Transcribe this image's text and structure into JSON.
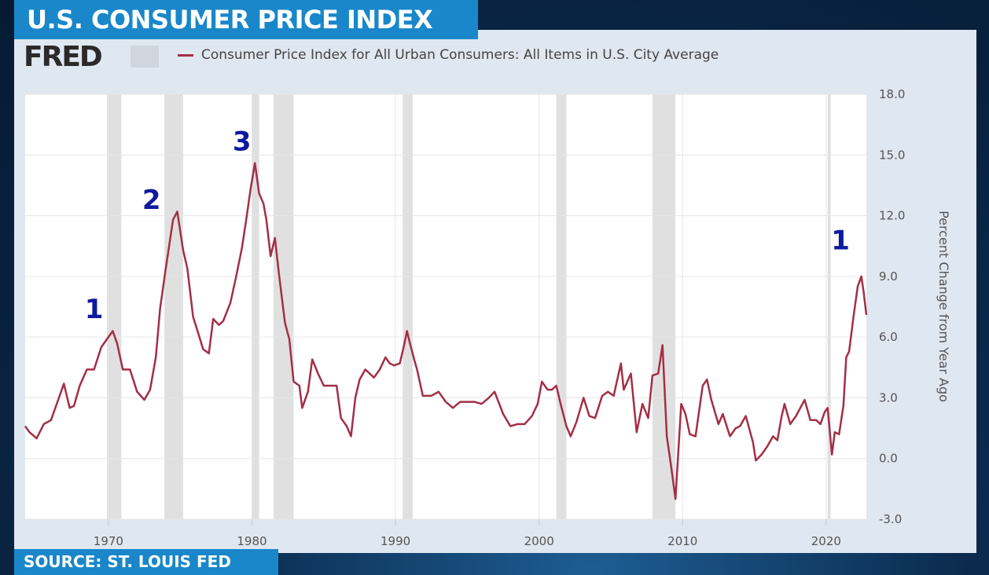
{
  "header": {
    "title": "U.S. CONSUMER PRICE INDEX",
    "source": "SOURCE: ST. LOUIS FED",
    "logo_text": "FRED"
  },
  "colors": {
    "line": "#a32f46",
    "recession": "#e0e0e0",
    "accent": "#1987c9",
    "annotation": "#0e1aa0"
  },
  "chart_data": {
    "type": "line",
    "title": "",
    "legend": "Consumer Price Index for All Urban Consumers: All Items in U.S. City Average",
    "legend_placement": "top-left",
    "xlabel": "",
    "ylabel": "Percent Change from Year Ago",
    "xlim": [
      1964.2,
      2022.8
    ],
    "ylim": [
      -3,
      18
    ],
    "yticks": [
      "18.0",
      "15.0",
      "12.0",
      "9.0",
      "6.0",
      "3.0",
      "0.0",
      "-3.0"
    ],
    "xticks": [
      "1970",
      "1980",
      "1990",
      "2000",
      "2010",
      "2020"
    ],
    "grid": true,
    "y_axis_side": "right",
    "recessions": [
      [
        1969.9,
        1970.9
      ],
      [
        1973.9,
        1975.2
      ],
      [
        1980.0,
        1980.5
      ],
      [
        1981.5,
        1982.9
      ],
      [
        1990.5,
        1991.2
      ],
      [
        2001.2,
        2001.9
      ],
      [
        2007.9,
        2009.5
      ],
      [
        2020.1,
        2020.3
      ]
    ],
    "series": [
      {
        "x": [
          1964.2,
          1964.5,
          1965.0,
          1965.5,
          1966.0,
          1966.5,
          1966.9,
          1967.3,
          1967.6,
          1968.0,
          1968.5,
          1969.0,
          1969.5,
          1970.0,
          1970.3,
          1970.6,
          1971.0,
          1971.5,
          1972.0,
          1972.5,
          1972.9,
          1973.3,
          1973.6,
          1974.0,
          1974.5,
          1974.8,
          1975.2,
          1975.5,
          1975.9,
          1976.3,
          1976.6,
          1977.0,
          1977.3,
          1977.7,
          1978.0,
          1978.5,
          1978.9,
          1979.3,
          1979.6,
          1979.9,
          1980.2,
          1980.5,
          1980.8,
          1981.0,
          1981.3,
          1981.6,
          1981.9,
          1982.3,
          1982.6,
          1982.9,
          1983.3,
          1983.5,
          1983.9,
          1984.2,
          1984.6,
          1985.0,
          1985.5,
          1985.9,
          1986.2,
          1986.6,
          1986.9,
          1987.2,
          1987.5,
          1987.9,
          1988.5,
          1988.9,
          1989.3,
          1989.6,
          1989.9,
          1990.3,
          1990.6,
          1990.8,
          1991.0,
          1991.3,
          1991.5,
          1991.9,
          1992.5,
          1993.0,
          1993.5,
          1994.0,
          1994.5,
          1995.0,
          1995.5,
          1996.0,
          1996.5,
          1996.9,
          1997.5,
          1998.0,
          1998.5,
          1999.0,
          1999.5,
          1999.9,
          2000.2,
          2000.6,
          2000.9,
          2001.2,
          2001.5,
          2001.9,
          2002.2,
          2002.6,
          2003.1,
          2003.5,
          2003.9,
          2004.4,
          2004.8,
          2005.2,
          2005.7,
          2005.9,
          2006.4,
          2006.8,
          2007.2,
          2007.6,
          2007.9,
          2008.3,
          2008.6,
          2008.9,
          2009.2,
          2009.5,
          2009.9,
          2010.2,
          2010.5,
          2010.9,
          2011.4,
          2011.7,
          2012.0,
          2012.5,
          2012.8,
          2013.3,
          2013.7,
          2014.0,
          2014.4,
          2014.9,
          2015.1,
          2015.5,
          2015.9,
          2016.3,
          2016.6,
          2016.9,
          2017.1,
          2017.5,
          2017.9,
          2018.5,
          2018.9,
          2019.3,
          2019.6,
          2019.9,
          2020.1,
          2020.4,
          2020.6,
          2020.9,
          2021.2,
          2021.4,
          2021.6,
          2021.9,
          2022.2,
          2022.45,
          2022.6,
          2022.8
        ],
        "y": [
          1.6,
          1.3,
          1.0,
          1.7,
          1.9,
          2.9,
          3.7,
          2.5,
          2.6,
          3.6,
          4.4,
          4.4,
          5.5,
          6.0,
          6.3,
          5.7,
          4.4,
          4.4,
          3.3,
          2.9,
          3.4,
          5.0,
          7.4,
          9.4,
          11.8,
          12.2,
          10.3,
          9.4,
          7.0,
          6.1,
          5.4,
          5.2,
          6.9,
          6.6,
          6.8,
          7.7,
          9.0,
          10.4,
          11.8,
          13.3,
          14.6,
          13.1,
          12.6,
          11.8,
          10.0,
          10.9,
          9.0,
          6.7,
          5.9,
          3.8,
          3.6,
          2.5,
          3.3,
          4.9,
          4.2,
          3.6,
          3.6,
          3.6,
          2.0,
          1.6,
          1.1,
          3.0,
          3.9,
          4.4,
          4.0,
          4.4,
          5.0,
          4.7,
          4.6,
          4.7,
          5.6,
          6.3,
          5.7,
          4.9,
          4.4,
          3.1,
          3.1,
          3.3,
          2.8,
          2.5,
          2.8,
          2.8,
          2.8,
          2.7,
          3.0,
          3.3,
          2.2,
          1.6,
          1.7,
          1.7,
          2.1,
          2.7,
          3.8,
          3.4,
          3.4,
          3.6,
          2.7,
          1.6,
          1.1,
          1.8,
          3.0,
          2.1,
          2.0,
          3.1,
          3.3,
          3.1,
          4.7,
          3.4,
          4.2,
          1.3,
          2.7,
          2.0,
          4.1,
          4.2,
          5.6,
          1.1,
          -0.4,
          -2.0,
          2.7,
          2.2,
          1.2,
          1.1,
          3.6,
          3.9,
          2.9,
          1.7,
          2.2,
          1.1,
          1.5,
          1.6,
          2.1,
          0.8,
          -0.1,
          0.2,
          0.6,
          1.1,
          0.9,
          2.1,
          2.7,
          1.7,
          2.1,
          2.9,
          1.9,
          1.9,
          1.7,
          2.3,
          2.5,
          0.2,
          1.3,
          1.2,
          2.6,
          5.0,
          5.3,
          7.0,
          8.5,
          9.0,
          8.3,
          7.1
        ]
      }
    ],
    "annotations": [
      {
        "label": "1",
        "x": 1969.0,
        "y": 7.4
      },
      {
        "label": "2",
        "x": 1973.0,
        "y": 12.8
      },
      {
        "label": "3",
        "x": 1979.3,
        "y": 15.7
      },
      {
        "label": "1",
        "x": 2021.0,
        "y": 10.8
      }
    ]
  }
}
